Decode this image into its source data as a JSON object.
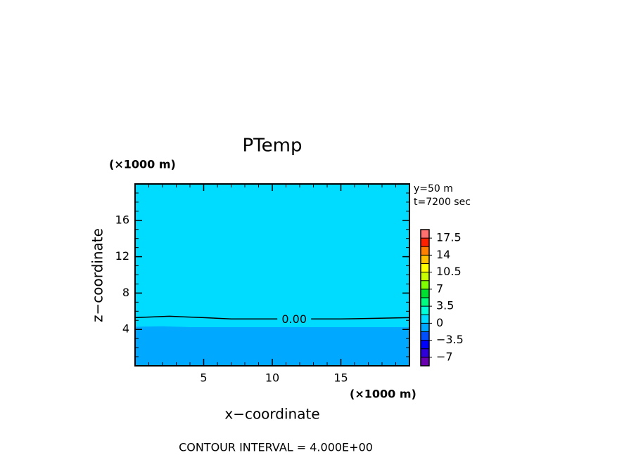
{
  "chart_data": {
    "type": "contour",
    "title": "PTemp",
    "x_label": "x−coordinate",
    "y_label": "z−coordinate",
    "x_units": "(×1000 m)",
    "y_units": "(×1000 m)",
    "annotations": [
      "y=50 m",
      "t=7200 sec"
    ],
    "footer": "CONTOUR INTERVAL = 4.000E+00",
    "xlim": [
      0,
      20
    ],
    "ylim": [
      0,
      20
    ],
    "xticks": [
      5,
      10,
      15
    ],
    "yticks": [
      4,
      8,
      12,
      16
    ],
    "xminor_step": 1,
    "yminor_step": 1,
    "fills": [
      {
        "range": [
          0,
          1.75
        ],
        "x": [
          0,
          20
        ],
        "top": [
          20,
          20
        ]
      },
      {
        "range": [
          -1.75,
          0
        ],
        "x": [
          0,
          2,
          4,
          20
        ],
        "top": [
          4.3,
          4.35,
          4.25,
          4.25
        ]
      }
    ],
    "contours": [
      {
        "value": 0,
        "label": "0.00",
        "label_x": 11.6,
        "x": [
          0,
          2.5,
          5,
          7,
          10,
          15,
          20
        ],
        "y": [
          5.3,
          5.45,
          5.3,
          5.15,
          5.15,
          5.15,
          5.3
        ]
      }
    ],
    "colorbar": {
      "levels": [
        -8.75,
        -7,
        -5.25,
        -3.5,
        -1.75,
        0,
        1.75,
        3.5,
        5.25,
        7,
        8.75,
        10.5,
        12.25,
        14,
        15.75,
        17.5,
        19.25
      ],
      "colors": [
        "#6a00b0",
        "#3000d8",
        "#0000ff",
        "#0050ff",
        "#00a8ff",
        "#00dcff",
        "#00ffd8",
        "#00ff80",
        "#00e030",
        "#80ff00",
        "#c8ff00",
        "#ffff00",
        "#ffc000",
        "#ff8000",
        "#ff2000",
        "#ff7070"
      ],
      "ticks": [
        {
          "value": -7,
          "label": "−7"
        },
        {
          "value": -3.5,
          "label": "−3.5"
        },
        0,
        3.5,
        7,
        10.5,
        14,
        17.5
      ]
    }
  }
}
